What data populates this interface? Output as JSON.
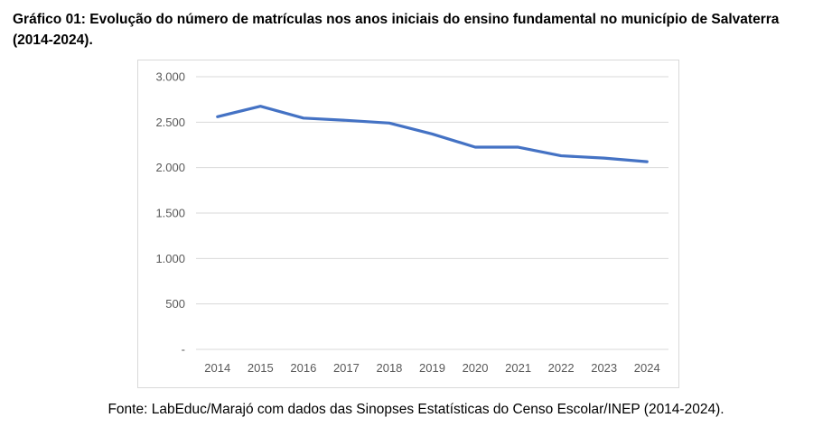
{
  "figure": {
    "title": "Gráfico 01: Evolução do número de matrículas nos anos iniciais do ensino fundamental no município de Salvaterra (2014-2024).",
    "source": "Fonte: LabEduc/Marajó com dados das Sinopses Estatísticas do Censo Escolar/INEP (2014-2024)."
  },
  "chart_data": {
    "type": "line",
    "title": "",
    "xlabel": "",
    "ylabel": "",
    "categories": [
      "2014",
      "2015",
      "2016",
      "2017",
      "2018",
      "2019",
      "2020",
      "2021",
      "2022",
      "2023",
      "2024"
    ],
    "series": [
      {
        "values": [
          2560,
          2675,
          2545,
          2520,
          2490,
          2370,
          2225,
          2225,
          2130,
          2105,
          2065
        ],
        "color": "#4472c4"
      }
    ],
    "ylim": [
      0,
      3000
    ],
    "yticks": [
      0,
      500,
      1000,
      1500,
      2000,
      2500,
      3000
    ],
    "ytick_labels": [
      "-",
      "500",
      "1.000",
      "1.500",
      "2.000",
      "2.500",
      "3.000"
    ],
    "grid": true,
    "gridline_color": "#d9d9d9",
    "legend": "none"
  }
}
